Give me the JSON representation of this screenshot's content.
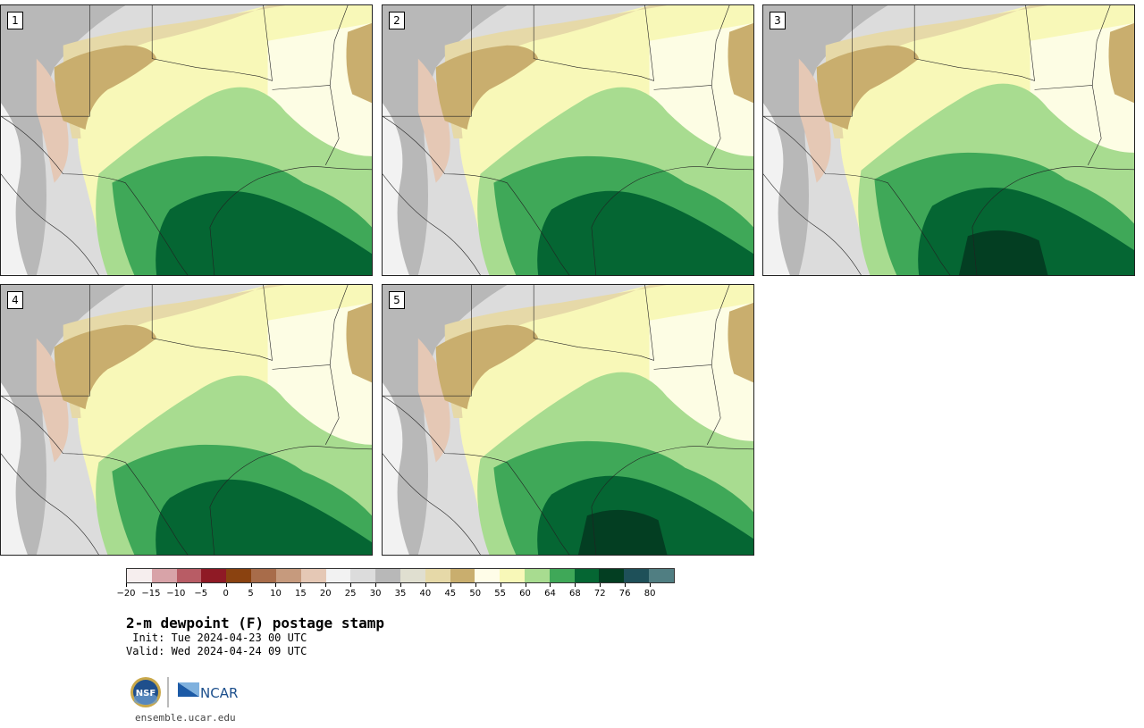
{
  "panels": [
    {
      "id": "1"
    },
    {
      "id": "2"
    },
    {
      "id": "3"
    },
    {
      "id": "4"
    },
    {
      "id": "5"
    }
  ],
  "colorbar": {
    "tick_labels": [
      "−20",
      "−15",
      "−10",
      "−5",
      "0",
      "5",
      "10",
      "15",
      "20",
      "25",
      "30",
      "35",
      "40",
      "45",
      "50",
      "55",
      "60",
      "64",
      "68",
      "72",
      "76",
      "80"
    ],
    "colors": [
      "#f6eeee",
      "#d8a3a8",
      "#b85c65",
      "#8f1a25",
      "#8a4210",
      "#a86c4a",
      "#c69a7d",
      "#e5c8b5",
      "#f2f2f2",
      "#dcdcdc",
      "#b8b8b8",
      "#e0dfd0",
      "#e6d9a8",
      "#c9ae6e",
      "#fffde8",
      "#f8f8b8",
      "#a8dc90",
      "#3fa858",
      "#056633",
      "#033e22",
      "#1e5059",
      "#507e82"
    ]
  },
  "title": "2-m dewpoint (F) postage stamp",
  "init": " Init: Tue 2024-04-23 00 UTC",
  "valid": "Valid: Wed 2024-04-24 09 UTC",
  "logos": {
    "nsf": "NSF",
    "ncar": "NCAR"
  },
  "site": "ensemble.ucar.edu"
}
